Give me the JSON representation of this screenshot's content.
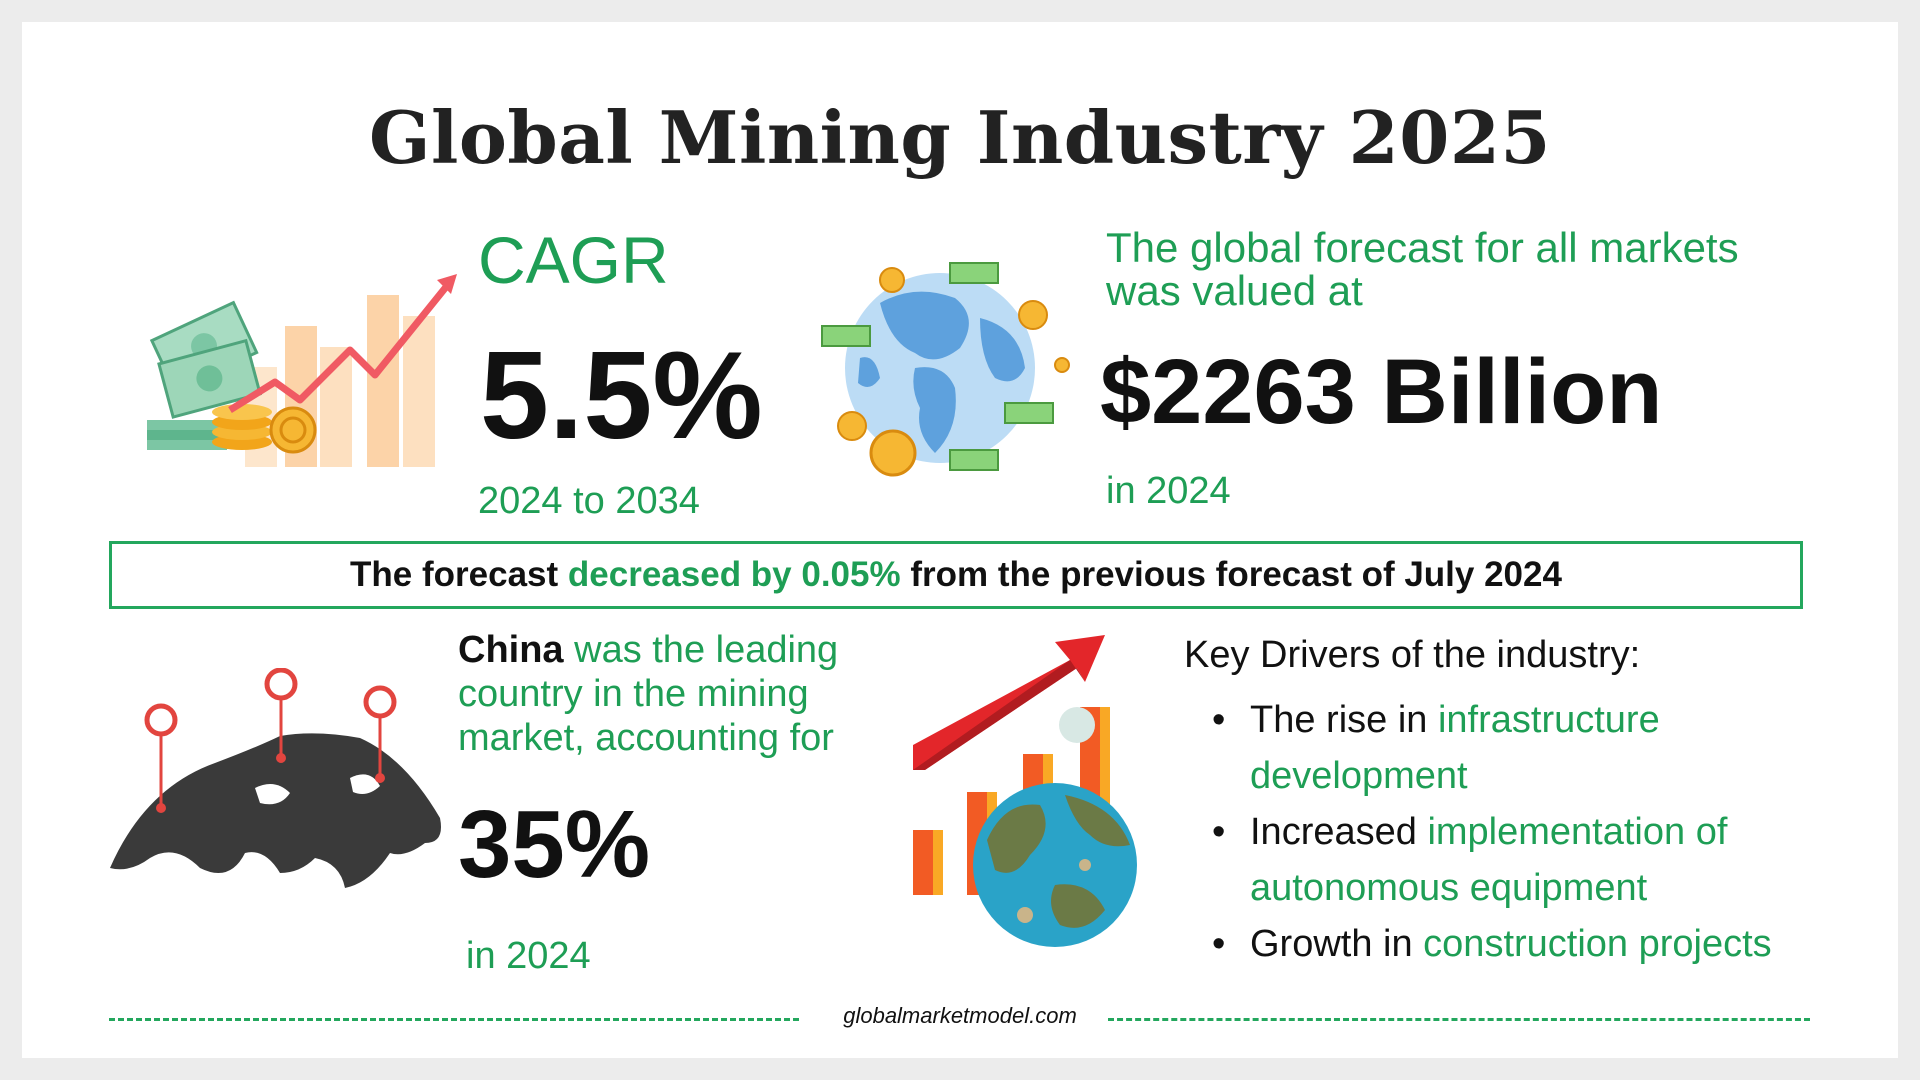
{
  "title": "Global Mining Industry 2025",
  "cagr": {
    "label": "CAGR",
    "value": "5.5%",
    "period": "2024 to 2034"
  },
  "forecast": {
    "label": "The global forecast for all markets was valued at",
    "value": "$2263 Billion",
    "year": "in 2024"
  },
  "banner": {
    "prefix": "The forecast ",
    "highlight": "decreased by 0.05%",
    "suffix": " from the previous forecast of July 2024"
  },
  "china": {
    "country": "China",
    "text": " was the leading country in the mining market, accounting for",
    "value": "35%",
    "year": "in 2024"
  },
  "drivers": {
    "title": "Key Drivers of the industry:",
    "items": [
      {
        "plain": "The rise in ",
        "highlight": "infrastructure development"
      },
      {
        "plain": "Increased ",
        "highlight": "implementation of autonomous equipment"
      },
      {
        "plain": "Growth in ",
        "highlight": "construction projects"
      }
    ]
  },
  "footer": {
    "site": "globalmarketmodel.com"
  },
  "colors": {
    "accent_green": "#1e9e55",
    "banner_border": "#23a75d",
    "text_dark": "#111111"
  },
  "icons": [
    "money-growth-chart-icon",
    "globe-money-icon",
    "world-map-pins-icon",
    "growth-globe-chart-icon"
  ]
}
